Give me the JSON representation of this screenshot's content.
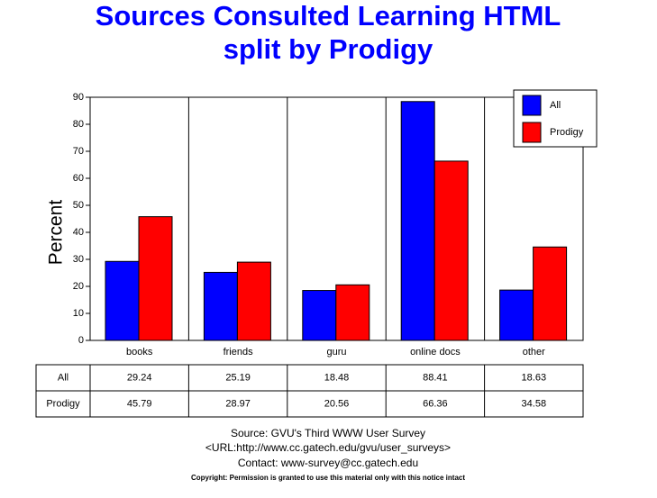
{
  "chart_data": {
    "type": "bar",
    "title": [
      "Sources Consulted Learning HTML",
      "split by Prodigy"
    ],
    "ylabel": "Percent",
    "categories": [
      "books",
      "friends",
      "guru",
      "online docs",
      "other"
    ],
    "series": [
      {
        "name": "All",
        "color": "#0000ff",
        "values": [
          29.24,
          25.19,
          18.48,
          88.41,
          18.63
        ]
      },
      {
        "name": "Prodigy",
        "color": "#ff0000",
        "values": [
          45.79,
          28.97,
          20.56,
          66.36,
          34.58
        ]
      }
    ],
    "ylim": [
      0,
      90
    ],
    "yticks": [
      0,
      10,
      20,
      30,
      40,
      50,
      60,
      70,
      80,
      90
    ],
    "grid": true,
    "legend": "top-right",
    "source": "Source: GVU's Third WWW User Survey",
    "url": "<URL:http://www.cc.gatech.edu/gvu/user_surveys>",
    "contact": "Contact: www-survey@cc.gatech.edu",
    "copyright": "Copyright: Permission is granted to use this material only with this notice intact"
  }
}
